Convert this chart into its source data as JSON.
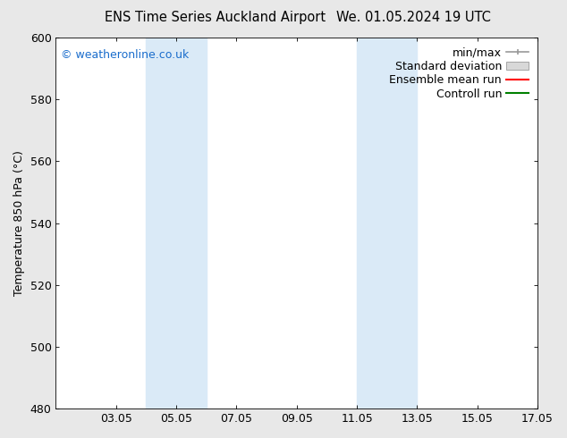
{
  "title_left": "ENS Time Series Auckland Airport",
  "title_right": "We. 01.05.2024 19 UTC",
  "ylabel": "Temperature 850 hPa (°C)",
  "xlim": [
    1,
    17
  ],
  "ylim": [
    480,
    600
  ],
  "yticks": [
    480,
    500,
    520,
    540,
    560,
    580,
    600
  ],
  "xtick_labels": [
    "03.05",
    "05.05",
    "07.05",
    "09.05",
    "11.05",
    "13.05",
    "15.05",
    "17.05"
  ],
  "xtick_positions": [
    3,
    5,
    7,
    9,
    11,
    13,
    15,
    17
  ],
  "shaded_bands": [
    {
      "x_start": 4.0,
      "x_end": 6.0,
      "color": "#daeaf7"
    },
    {
      "x_start": 11.0,
      "x_end": 13.0,
      "color": "#daeaf7"
    }
  ],
  "watermark_text": "© weatheronline.co.uk",
  "watermark_color": "#1a6dcc",
  "legend_entries": [
    {
      "label": "min/max",
      "color": "#999999"
    },
    {
      "label": "Standard deviation",
      "color": "#cccccc"
    },
    {
      "label": "Ensemble mean run",
      "color": "red"
    },
    {
      "label": "Controll run",
      "color": "green"
    }
  ],
  "background_color": "#e8e8e8",
  "plot_area_color": "#ffffff",
  "font_size": 9,
  "title_fontsize": 10.5
}
